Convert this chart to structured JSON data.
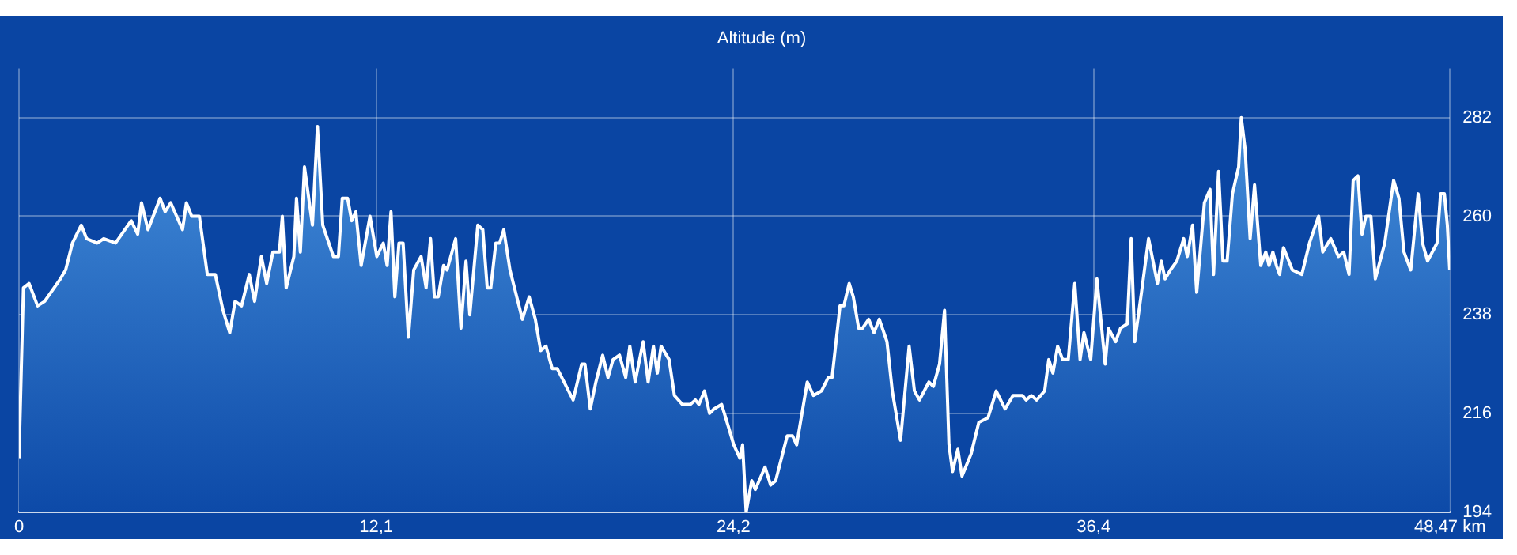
{
  "chart_data": {
    "type": "area",
    "title": "Altitude (m)",
    "xlim": [
      0,
      48.47
    ],
    "xticks": [
      0,
      {
        "value": 12.1,
        "label": "12,1"
      },
      {
        "value": 24.2,
        "label": "24,2"
      },
      {
        "value": 36.4,
        "label": "36,4"
      },
      {
        "value": 48.47,
        "label": "48,47 km"
      }
    ],
    "ylim": [
      194,
      293
    ],
    "yticks": [
      194,
      216,
      238,
      260,
      282
    ],
    "grid": true,
    "marker": "none",
    "series": [
      {
        "color": "#ffffff",
        "x": [
          0,
          0.15,
          0.34,
          0.63,
          0.87,
          1.4,
          1.58,
          1.81,
          2.11,
          2.29,
          2.65,
          2.87,
          3.27,
          3.8,
          4.02,
          4.15,
          4.37,
          4.78,
          4.95,
          5.14,
          5.54,
          5.67,
          5.85,
          6.11,
          6.38,
          6.65,
          6.91,
          7.14,
          7.32,
          7.54,
          7.8,
          7.98,
          8.21,
          8.39,
          8.6,
          8.82,
          8.92,
          9.05,
          9.31,
          9.4,
          9.53,
          9.67,
          9.94,
          10.11,
          10.29,
          10.65,
          10.82,
          10.95,
          11.13,
          11.27,
          11.41,
          11.59,
          11.89,
          12.12,
          12.34,
          12.47,
          12.6,
          12.73,
          12.87,
          13.01,
          13.19,
          13.37,
          13.62,
          13.79,
          13.94,
          14.07,
          14.2,
          14.38,
          14.5,
          14.79,
          14.97,
          15.14,
          15.27,
          15.54,
          15.71,
          15.86,
          15.98,
          16.15,
          16.28,
          16.42,
          16.63,
          17.05,
          17.28,
          17.49,
          17.67,
          17.85,
          18.06,
          18.23,
          18.77,
          19.06,
          19.17,
          19.35,
          19.54,
          19.77,
          19.95,
          20.12,
          20.34,
          20.55,
          20.69,
          20.87,
          21.14,
          21.31,
          21.49,
          21.62,
          21.75,
          22.02,
          22.2,
          22.47,
          22.74,
          22.91,
          23.03,
          23.22,
          23.39,
          23.54,
          23.8,
          24.03,
          24.21,
          24.42,
          24.51,
          24.63,
          24.82,
          24.94,
          25.27,
          25.46,
          25.63,
          26.02,
          26.2,
          26.34,
          26.52,
          26.7,
          26.91,
          27.18,
          27.41,
          27.54,
          27.81,
          27.94,
          28.12,
          28.26,
          28.44,
          28.57,
          28.78,
          28.96,
          29.14,
          29.4,
          29.58,
          29.86,
          30.15,
          30.33,
          30.5,
          30.82,
          30.97,
          31.18,
          31.35,
          31.5,
          31.62,
          31.8,
          31.94,
          32.25,
          32.51,
          32.82,
          33.1,
          33.4,
          33.67,
          33.99,
          34.11,
          34.29,
          34.47,
          34.74,
          34.88,
          35.02,
          35.18,
          35.35,
          35.54,
          35.76,
          35.94,
          36.07,
          36.3,
          36.51,
          36.79,
          36.9,
          37.14,
          37.31,
          37.54,
          37.67,
          37.79,
          38.02,
          38.26,
          38.56,
          38.69,
          38.82,
          39,
          39.22,
          39.45,
          39.57,
          39.75,
          39.89,
          40.15,
          40.34,
          40.46,
          40.63,
          40.78,
          40.92,
          41.1,
          41.31,
          41.4,
          41.53,
          41.7,
          41.85,
          42.06,
          42.23,
          42.34,
          42.47,
          42.59,
          42.7,
          42.83,
          43.13,
          43.45,
          43.71,
          44.02,
          44.16,
          44.43,
          44.69,
          44.87,
          45.05,
          45.19,
          45.35,
          45.49,
          45.62,
          45.79,
          45.94,
          46.26,
          46.56,
          46.74,
          46.91,
          47.14,
          47.39,
          47.54,
          47.71,
          48.03,
          48.15,
          48.28,
          48.38,
          48.46
        ],
        "values": [
          206,
          244,
          245,
          240,
          241,
          246,
          248,
          254,
          258,
          255,
          254,
          255,
          254,
          259,
          256,
          263,
          257,
          264,
          261,
          263,
          257,
          263,
          260,
          260,
          247,
          247,
          239,
          234,
          241,
          240,
          247,
          241,
          251,
          245,
          252,
          252,
          260,
          244,
          251,
          264,
          252,
          271,
          258,
          280,
          258,
          251,
          251,
          264,
          264,
          259,
          261,
          249,
          260,
          251,
          254,
          249,
          261,
          242,
          254,
          254,
          233,
          248,
          251,
          244,
          255,
          242,
          242,
          249,
          248,
          255,
          235,
          250,
          238,
          258,
          257,
          244,
          244,
          254,
          254,
          257,
          248,
          237,
          242,
          237,
          230,
          231,
          226,
          226,
          219,
          227,
          227,
          217,
          223,
          229,
          224,
          228,
          229,
          224,
          231,
          223,
          232,
          223,
          231,
          225,
          231,
          228,
          220,
          218,
          218,
          219,
          218,
          221,
          216,
          217,
          218,
          213,
          209,
          206,
          209,
          194,
          201,
          199,
          204,
          200,
          201,
          211,
          211,
          209,
          216,
          223,
          220,
          221,
          224,
          224,
          240,
          240,
          245,
          242,
          235,
          235,
          237,
          234,
          237,
          232,
          221,
          210,
          231,
          221,
          219,
          223,
          222,
          227,
          239,
          209,
          203,
          208,
          202,
          207,
          214,
          215,
          221,
          217,
          220,
          220,
          219,
          220,
          219,
          221,
          228,
          225,
          231,
          228,
          228,
          245,
          228,
          234,
          228,
          246,
          227,
          235,
          232,
          235,
          236,
          255,
          232,
          243,
          255,
          245,
          250,
          246,
          248,
          250,
          255,
          251,
          258,
          243,
          263,
          266,
          247,
          270,
          250,
          250,
          265,
          271,
          282,
          275,
          255,
          267,
          249,
          252,
          249,
          252,
          249,
          247,
          253,
          248,
          247,
          254,
          260,
          252,
          255,
          251,
          252,
          247,
          268,
          269,
          256,
          260,
          260,
          246,
          254,
          268,
          264,
          252,
          248,
          265,
          254,
          250,
          254,
          265,
          265,
          258,
          248
        ]
      }
    ]
  }
}
